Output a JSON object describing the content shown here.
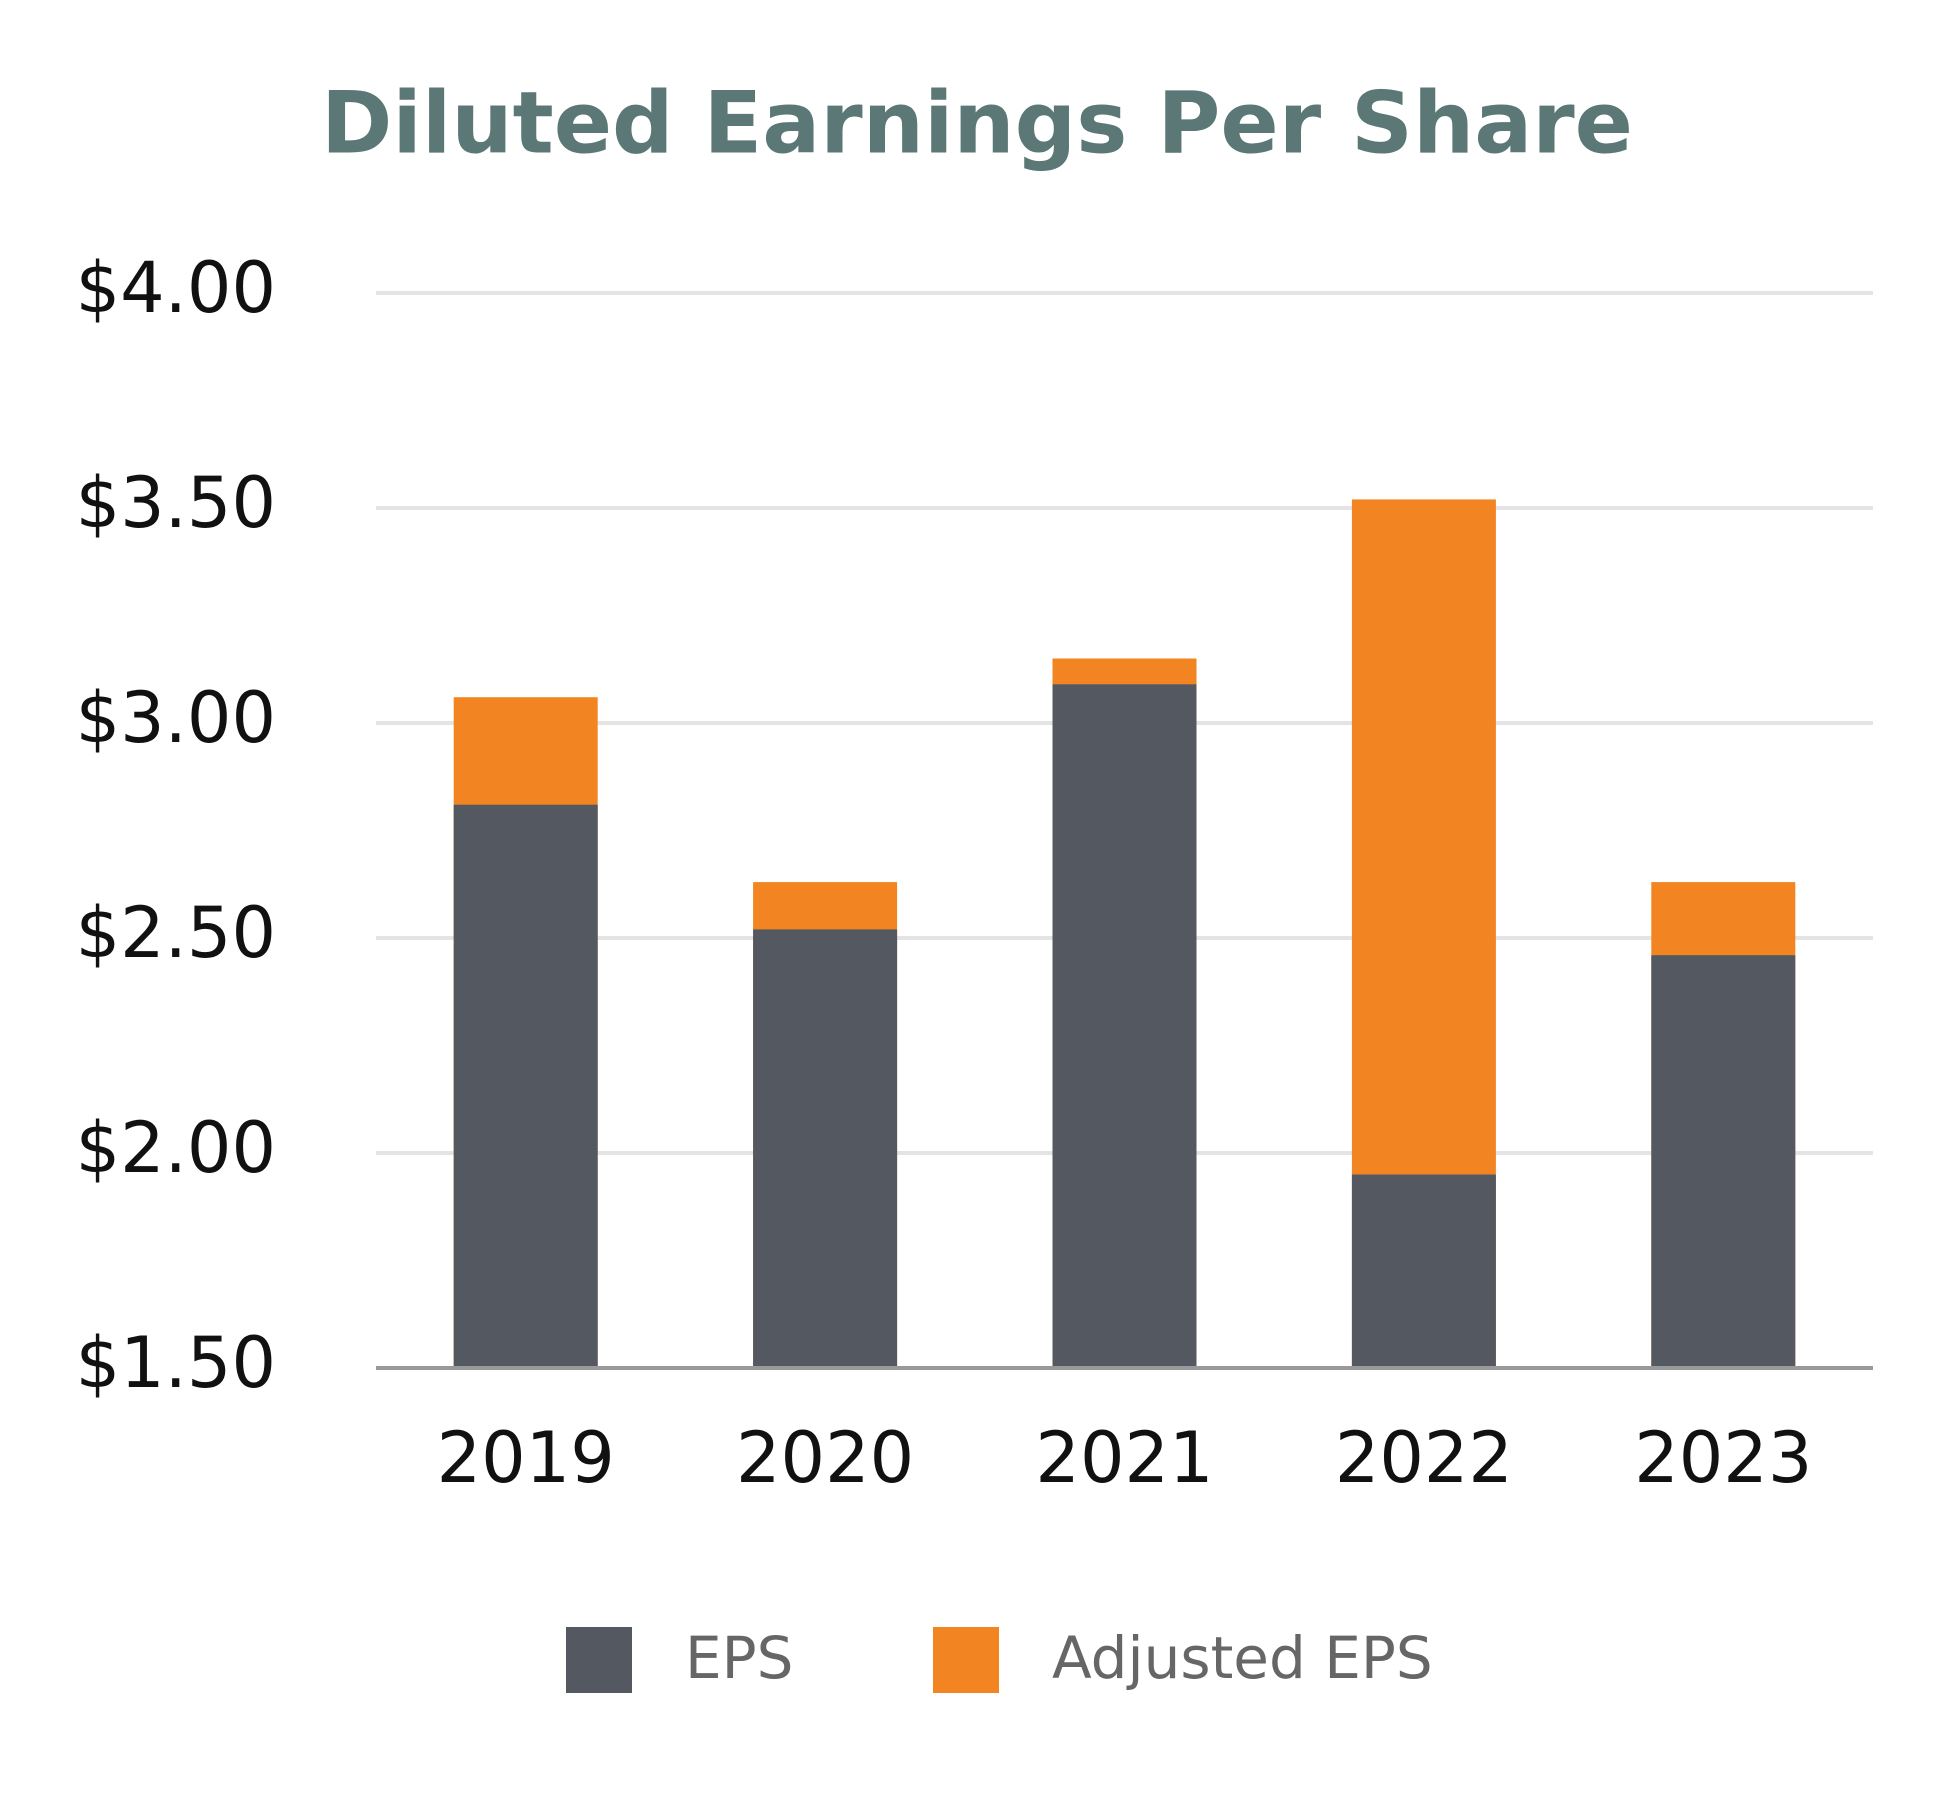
{
  "chart_data": {
    "type": "bar",
    "title": "Diluted Earnings Per Share",
    "categories": [
      "2019",
      "2020",
      "2021",
      "2022",
      "2023"
    ],
    "series": [
      {
        "name": "EPS",
        "color": "#545860",
        "values": [
          2.81,
          2.52,
          3.09,
          1.95,
          2.46
        ]
      },
      {
        "name": "Adjusted EPS",
        "color": "#f28522",
        "values": [
          3.06,
          2.63,
          3.15,
          3.52,
          2.63
        ]
      }
    ],
    "ylim": [
      1.5,
      4
    ],
    "yticks": [
      {
        "value": 1.5,
        "label": "$1.50"
      },
      {
        "value": 2,
        "label": "$2.00"
      },
      {
        "value": 2.5,
        "label": "$2.50"
      },
      {
        "value": 3,
        "label": "$3.00"
      },
      {
        "value": 3.5,
        "label": "$3.50"
      },
      {
        "value": 4,
        "label": "$4.00"
      }
    ],
    "grid": true
  }
}
